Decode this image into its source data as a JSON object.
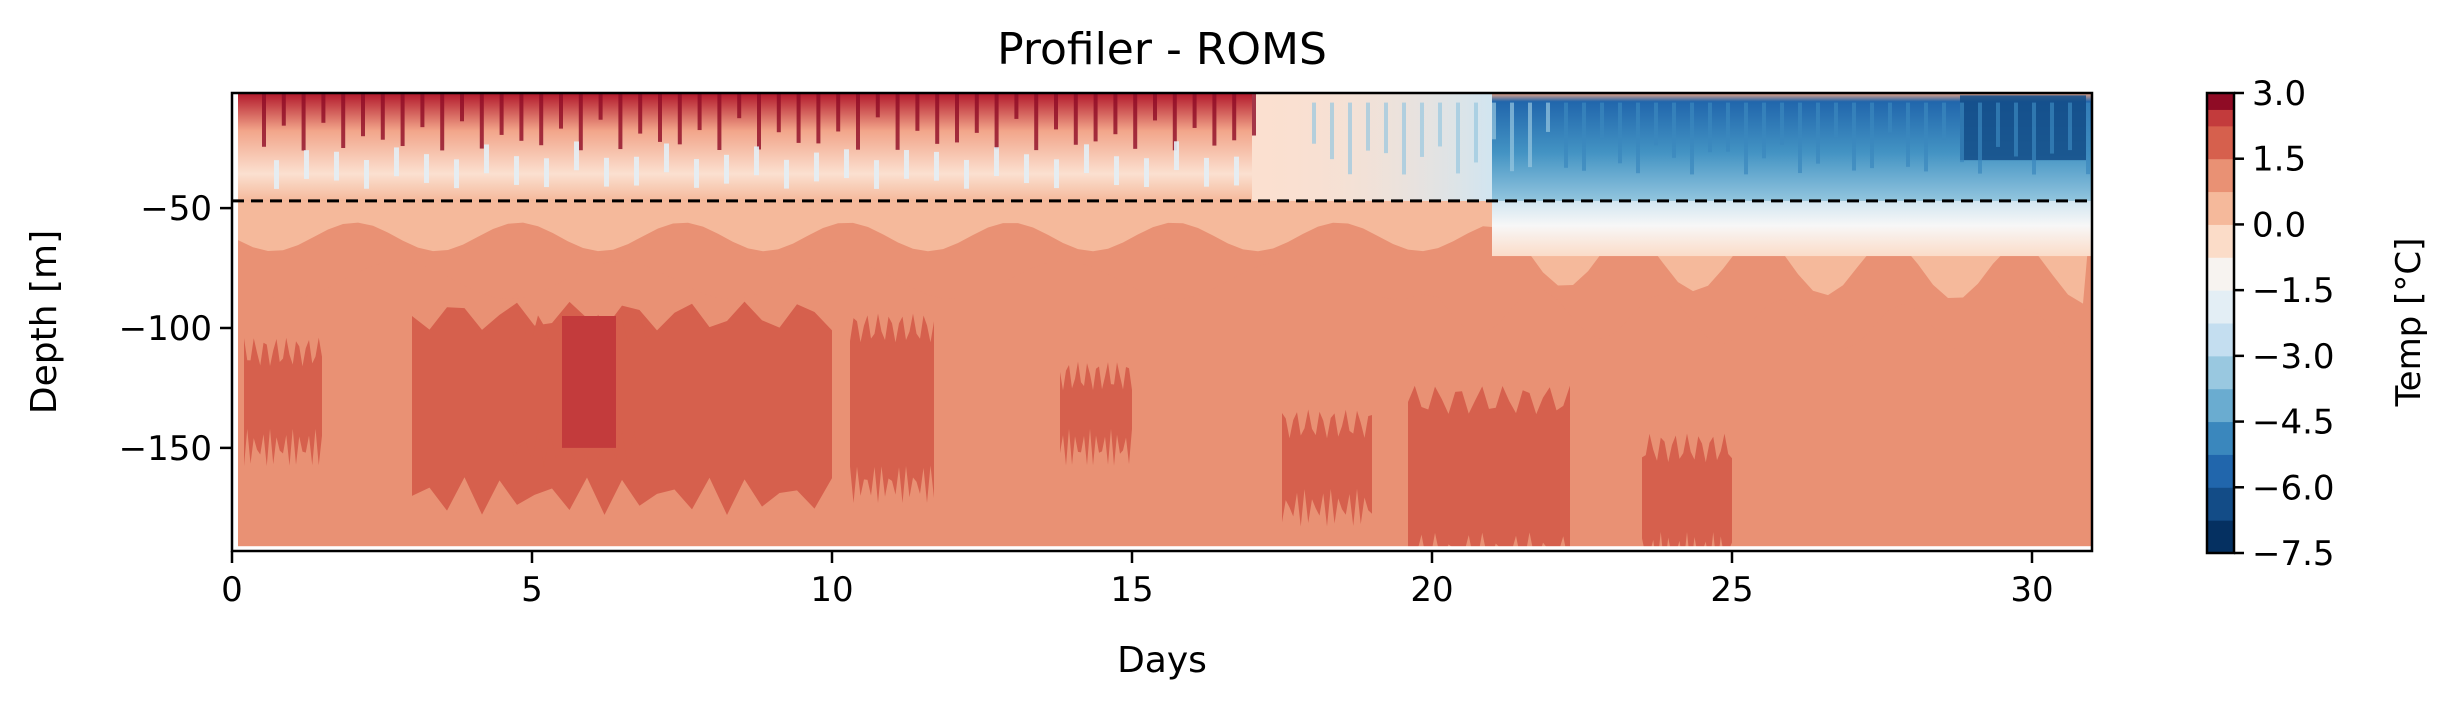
{
  "chart_data": {
    "type": "heatmap",
    "title": "Profiler - ROMS",
    "xlabel": "Days",
    "ylabel": "Depth [m]",
    "xlim": [
      0,
      31
    ],
    "ylim": [
      -193,
      -2
    ],
    "xticks": [
      0,
      5,
      10,
      15,
      20,
      25,
      30
    ],
    "xtick_labels": [
      "0",
      "5",
      "10",
      "15",
      "20",
      "25",
      "30"
    ],
    "yticks": [
      -50,
      -100,
      -150
    ],
    "ytick_labels": [
      "−50",
      "−100",
      "−150"
    ],
    "reference_line": {
      "depth": -47,
      "style": "dashed",
      "color": "#000000"
    },
    "colorbar": {
      "label": "Temp [$^\\circ C$]",
      "colormap": "RdBu_r",
      "vmin": -7.5,
      "vmax": 3.0,
      "ticks": [
        3.0,
        1.5,
        0.0,
        -1.5,
        -3.0,
        -4.5,
        -6.0,
        -7.5
      ],
      "tick_labels": [
        "3.0",
        "1.5",
        "0.0",
        "−1.5",
        "−3.0",
        "−4.5",
        "−6.0",
        "−7.5"
      ],
      "levels": [
        {
          "from": -7.5,
          "to": -6.75,
          "color": "#053061"
        },
        {
          "from": -6.75,
          "to": -6.0,
          "color": "#134c87"
        },
        {
          "from": -6.0,
          "to": -5.25,
          "color": "#2166ac"
        },
        {
          "from": -5.25,
          "to": -4.5,
          "color": "#3a87bd"
        },
        {
          "from": -4.5,
          "to": -3.75,
          "color": "#6aacd0"
        },
        {
          "from": -3.75,
          "to": -3.0,
          "color": "#99c8e0"
        },
        {
          "from": -3.0,
          "to": -2.25,
          "color": "#c4def0"
        },
        {
          "from": -2.25,
          "to": -1.5,
          "color": "#e3eef5"
        },
        {
          "from": -1.5,
          "to": -0.75,
          "color": "#f7f3f0"
        },
        {
          "from": -0.75,
          "to": 0.0,
          "color": "#fbdcc8"
        },
        {
          "from": 0.0,
          "to": 0.75,
          "color": "#f5b99b"
        },
        {
          "from": 0.75,
          "to": 1.5,
          "color": "#e99174"
        },
        {
          "from": 1.5,
          "to": 2.25,
          "color": "#d6604d"
        },
        {
          "from": 2.25,
          "to": 2.625,
          "color": "#c33b3c"
        },
        {
          "from": 2.625,
          "to": 3.0,
          "color": "#8f0b25"
        }
      ]
    },
    "regions": [
      {
        "name": "surface-layer",
        "days": [
          0.1,
          31
        ],
        "depth": [
          -2,
          -47
        ],
        "pattern": "warm (1.5–3.0) before day 17, cold (−7.5 to −3.0) after day 21"
      },
      {
        "name": "mid-layer",
        "days": [
          0.1,
          31
        ],
        "depth": [
          -47,
          -100
        ],
        "pattern": "0.0–0.75 before day 21, −3.0 to 0.0 after day 21"
      },
      {
        "name": "deep-layer",
        "days": [
          0.1,
          31
        ],
        "depth": [
          -100,
          -193
        ],
        "pattern": "0.75–2.25 with patches of 1.5–2.25"
      }
    ]
  }
}
